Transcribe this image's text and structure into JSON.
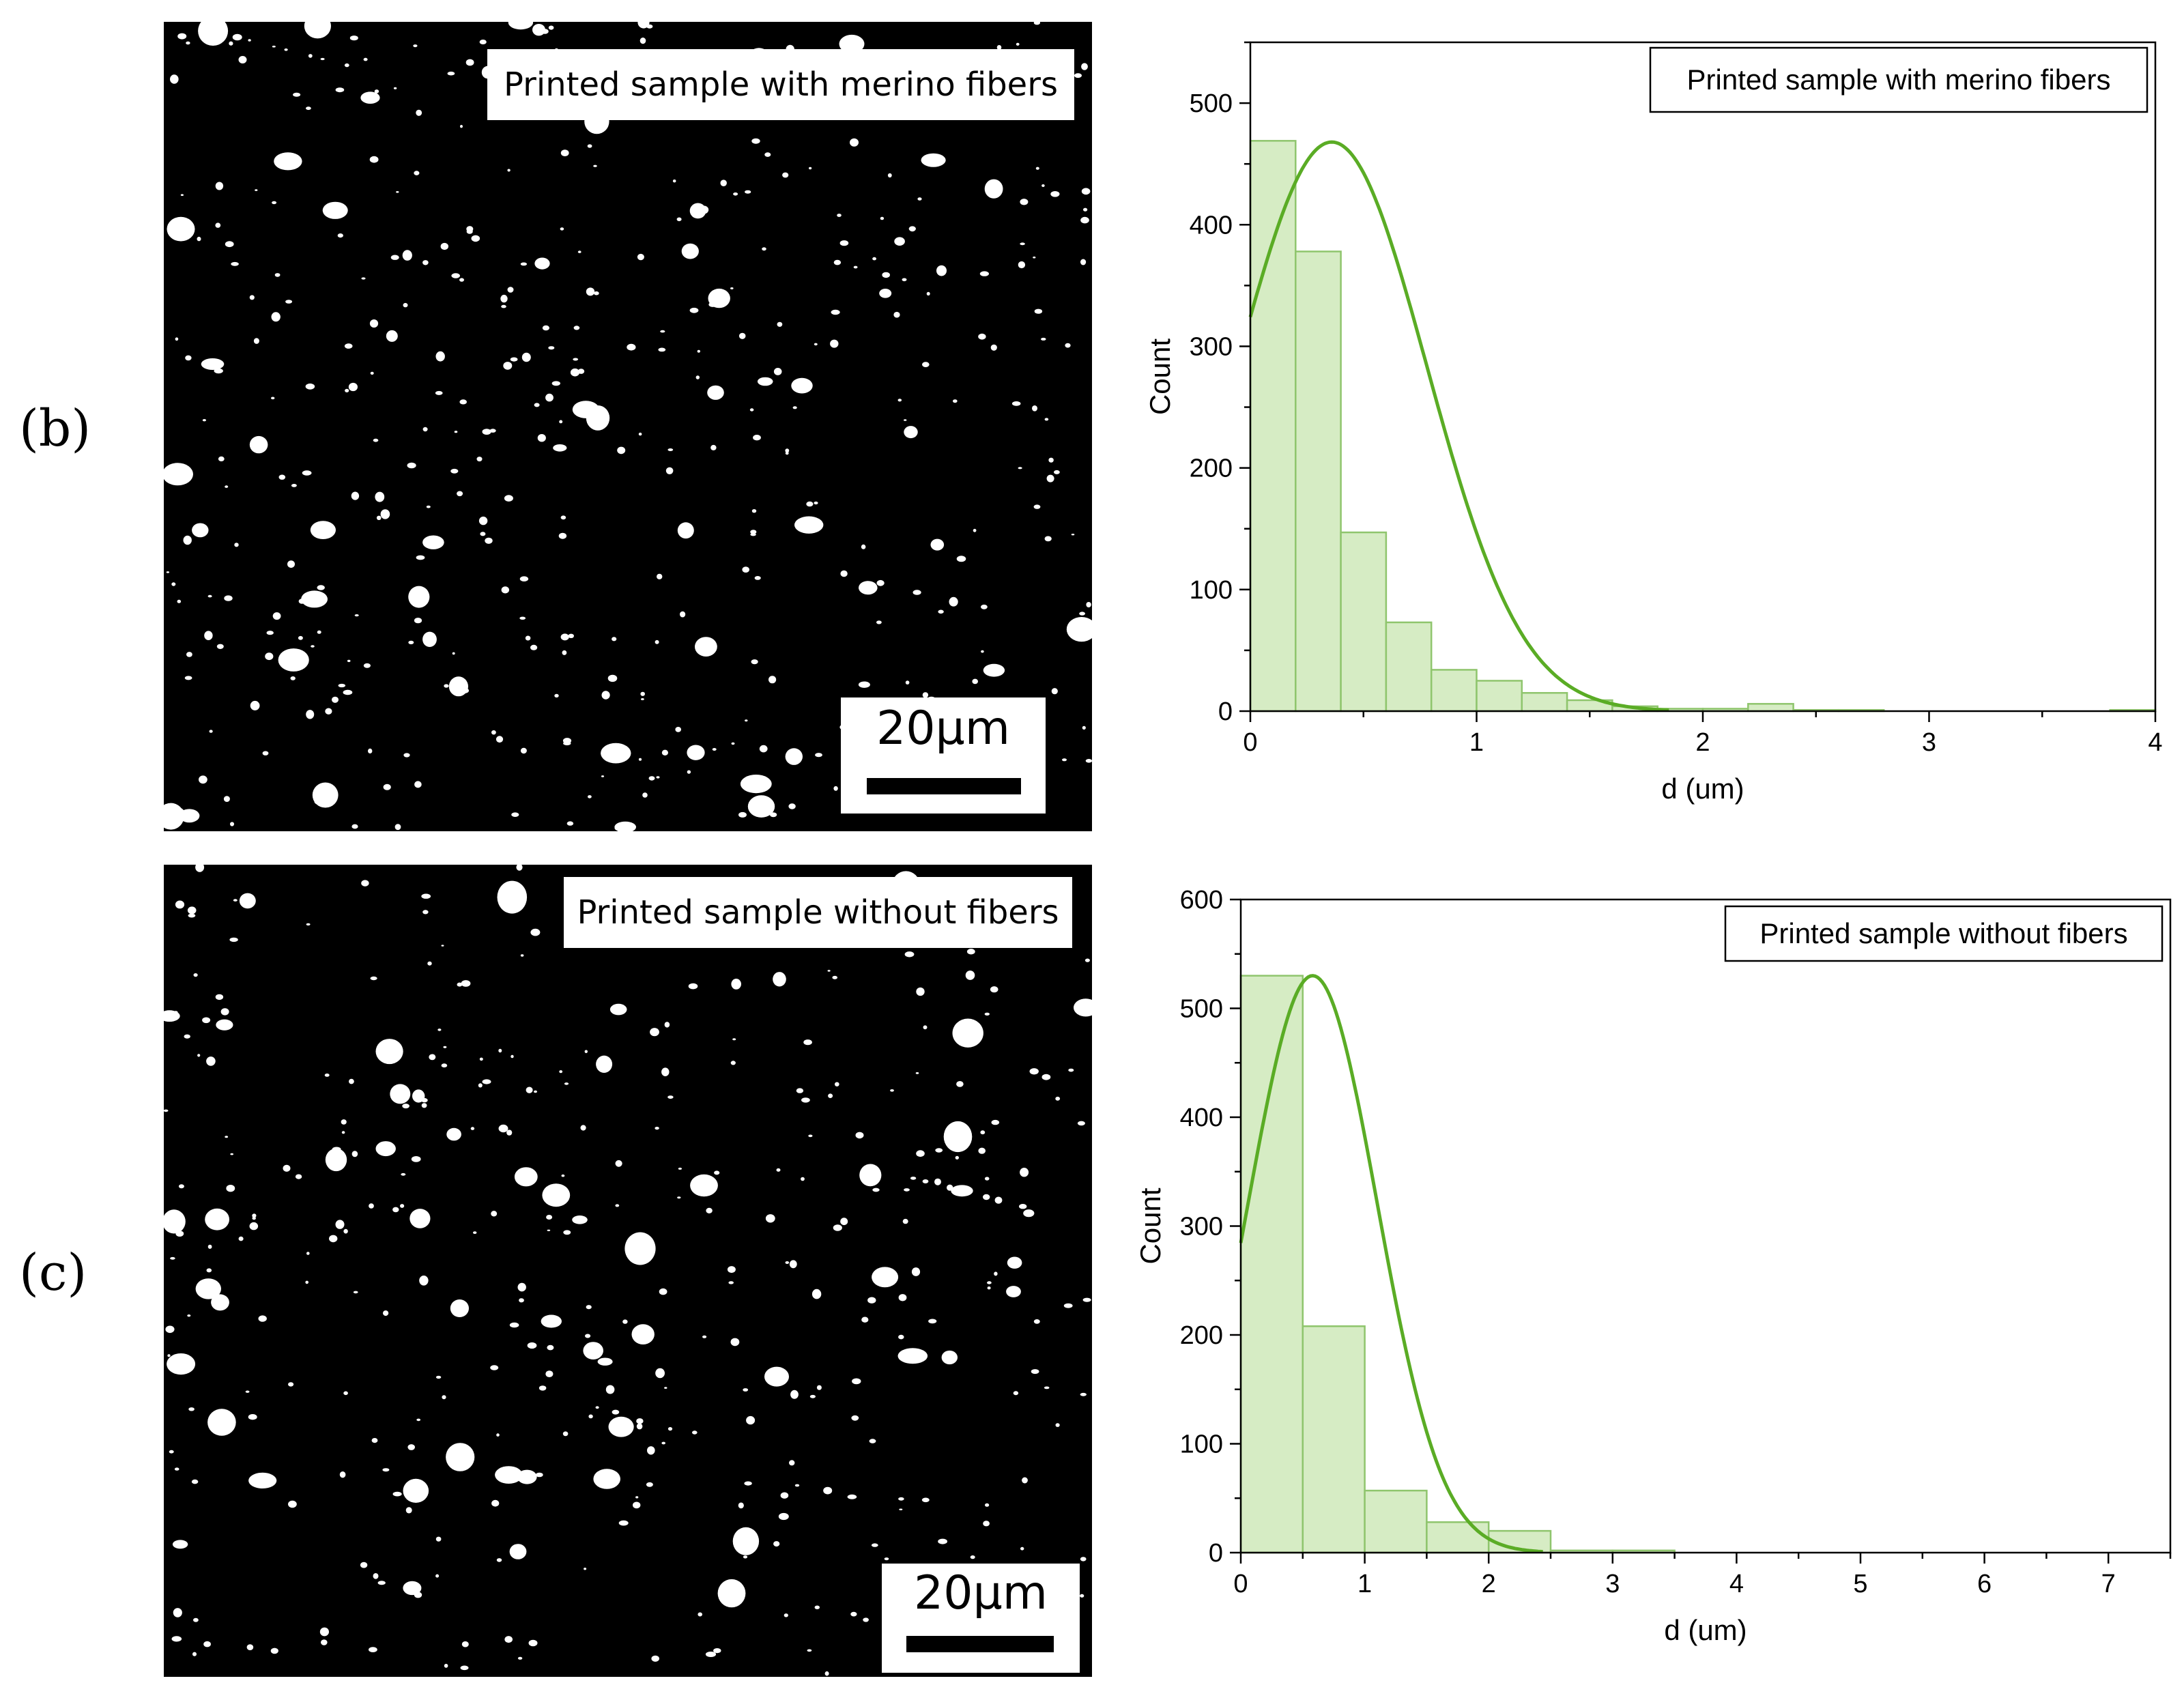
{
  "panels": [
    {
      "label": "(b)",
      "micrograph": {
        "title": "Printed sample with merino fibers",
        "scale_bar": "20μm"
      }
    },
    {
      "label": "(c)",
      "micrograph": {
        "title": "Printed sample without fibers",
        "scale_bar": "20μm"
      }
    }
  ],
  "colors": {
    "bar_fill": "#d6ecc4",
    "bar_stroke": "#8fc56d",
    "fit_curve": "#5aac25",
    "axis": "#000000"
  },
  "chart_data": [
    {
      "type": "bar",
      "title": "",
      "legend_text": "Printed sample with merino fibers",
      "legend_position": "top-right",
      "xlabel": "d (um)",
      "ylabel": "Count",
      "xlim": [
        0,
        4
      ],
      "ylim": [
        0,
        550
      ],
      "xticks": [
        0,
        1,
        2,
        3,
        4
      ],
      "yticks": [
        0,
        100,
        200,
        300,
        400,
        500
      ],
      "grid": false,
      "bin_width": 0.2,
      "bin_start": [
        0,
        0.2,
        0.4,
        0.6,
        0.8,
        1.0,
        1.2,
        1.4,
        1.6,
        1.8,
        2.0,
        2.2,
        2.4,
        2.6,
        2.8,
        3.0,
        3.2,
        3.4,
        3.6,
        3.8
      ],
      "values": [
        469,
        378,
        147,
        73,
        34,
        25,
        15,
        9,
        4,
        2,
        2,
        6,
        1,
        1,
        0,
        0,
        0,
        0,
        0,
        1
      ],
      "fit": {
        "type": "normal",
        "peak": 468,
        "mean": 0.36,
        "sigma": 0.42
      }
    },
    {
      "type": "bar",
      "title": "",
      "legend_text": "Printed sample without fibers",
      "legend_position": "top-right",
      "xlabel": "d (um)",
      "ylabel": "Count",
      "xlim": [
        0,
        7.5
      ],
      "ylim": [
        0,
        600
      ],
      "xticks": [
        0,
        1,
        2,
        3,
        4,
        5,
        6,
        7
      ],
      "yticks": [
        0,
        100,
        200,
        300,
        400,
        500,
        600
      ],
      "grid": false,
      "bin_width": 0.5,
      "bin_start": [
        0,
        0.5,
        1.0,
        1.5,
        2.0,
        2.5,
        3.0
      ],
      "values": [
        530,
        208,
        57,
        28,
        20,
        2,
        2
      ],
      "fit": {
        "type": "normal",
        "peak": 530,
        "mean": 0.58,
        "sigma": 0.52
      }
    }
  ]
}
